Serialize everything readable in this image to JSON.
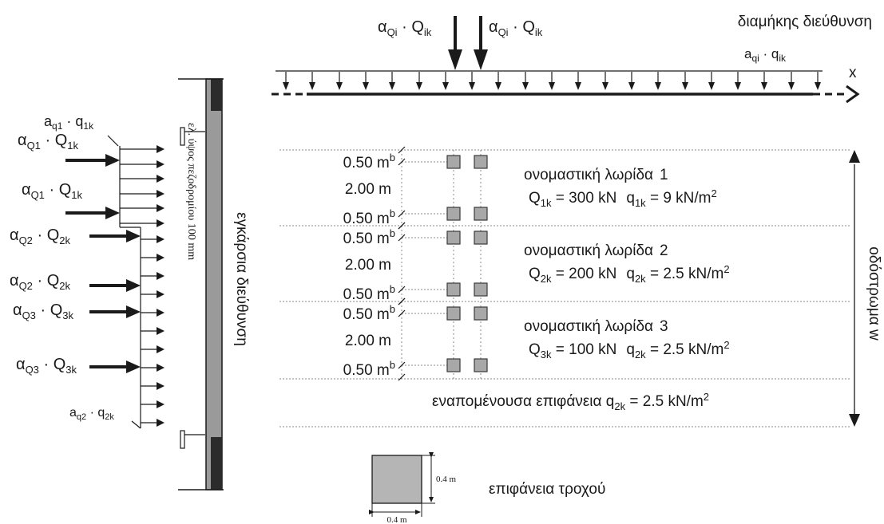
{
  "longitudinal": {
    "title": "διαμήκης διεύθυνση",
    "axis_label": "x",
    "point_loads": [
      {
        "alpha": "α",
        "alpha_sub": "Qi",
        "q": "Q",
        "q_sub": "ik"
      },
      {
        "alpha": "α",
        "alpha_sub": "Qi",
        "q": "Q",
        "q_sub": "ik"
      }
    ],
    "udl_label": {
      "a": "a",
      "a_sub": "qi",
      "q": "q",
      "q_sub": "ik"
    }
  },
  "transverse": {
    "title": "εγκάρσια διεύθυνση",
    "kerb_label": "ελ. ύψος πεζοδρομίου 100 mm",
    "udl_top": {
      "a": "a",
      "a_sub": "q1",
      "q": "q",
      "q_sub": "1k"
    },
    "udl_bottom": {
      "a": "a",
      "a_sub": "q2",
      "q": "q",
      "q_sub": "2k"
    },
    "point_loads": [
      {
        "alpha": "α",
        "alpha_sub": "Q1",
        "q": "Q",
        "q_sub": "1k"
      },
      {
        "alpha": "α",
        "alpha_sub": "Q1",
        "q": "Q",
        "q_sub": "1k"
      },
      {
        "alpha": "α",
        "alpha_sub": "Q2",
        "q": "Q",
        "q_sub": "2k"
      },
      {
        "alpha": "α",
        "alpha_sub": "Q2",
        "q": "Q",
        "q_sub": "2k"
      },
      {
        "alpha": "α",
        "alpha_sub": "Q3",
        "q": "Q",
        "q_sub": "3k"
      },
      {
        "alpha": "α",
        "alpha_sub": "Q3",
        "q": "Q",
        "q_sub": "3k"
      }
    ]
  },
  "plan": {
    "carriageway_label": "οδόστρωμα w",
    "dims": {
      "edge": "0.50 m",
      "edge_sup": "b",
      "inner": "2.00 m"
    },
    "lanes": [
      {
        "name": "ονομαστική λωρίδα",
        "number": "1",
        "Q": "Q",
        "Q_sub": "1k",
        "Q_value": " = 300 kN",
        "q": "q",
        "q_sub": "1k",
        "q_value": " = 9 kN/m",
        "q_sup": "2"
      },
      {
        "name": "ονομαστική λωρίδα",
        "number": "2",
        "Q": "Q",
        "Q_sub": "2k",
        "Q_value": " = 200 kN",
        "q": "q",
        "q_sub": "2k",
        "q_value": " = 2.5 kN/m",
        "q_sup": "2"
      },
      {
        "name": "ονομαστική λωρίδα",
        "number": "3",
        "Q": "Q",
        "Q_sub": "3k",
        "Q_value": " = 100 kN",
        "q": "q",
        "q_sub": "2k",
        "q_value": " = 2.5 kN/m",
        "q_sup": "2"
      }
    ],
    "remaining": {
      "label": "εναπομένουσα επιφάνεια ",
      "q": "q",
      "q_sub": "2k",
      "q_value": " = 2.5 kN/m",
      "q_sup": "2"
    }
  },
  "wheel": {
    "label": "επιφάνεια τροχού",
    "side": "0.4 m",
    "bottom": "0.4 m"
  }
}
